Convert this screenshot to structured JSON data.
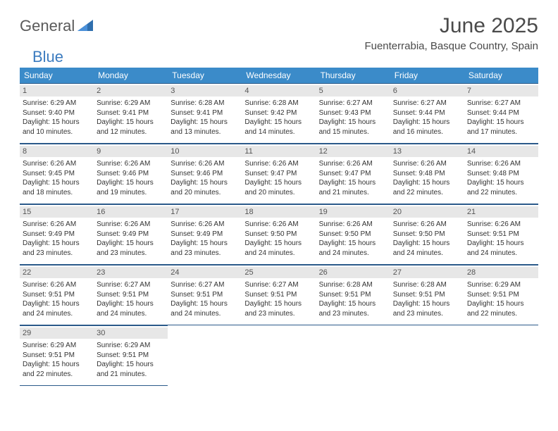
{
  "logo": {
    "general": "General",
    "blue": "Blue"
  },
  "title": "June 2025",
  "location": "Fuenterrabia, Basque Country, Spain",
  "weekdays": [
    "Sunday",
    "Monday",
    "Tuesday",
    "Wednesday",
    "Thursday",
    "Friday",
    "Saturday"
  ],
  "colors": {
    "header_bg": "#3b8bc9",
    "header_text": "#ffffff",
    "daynum_bg": "#e7e7e7",
    "border": "#2b5a8a",
    "logo_gray": "#5a5a5a",
    "logo_blue": "#3b7bbf"
  },
  "weeks": [
    [
      {
        "n": "1",
        "sr": "6:29 AM",
        "ss": "9:40 PM",
        "dl": "15 hours and 10 minutes."
      },
      {
        "n": "2",
        "sr": "6:29 AM",
        "ss": "9:41 PM",
        "dl": "15 hours and 12 minutes."
      },
      {
        "n": "3",
        "sr": "6:28 AM",
        "ss": "9:41 PM",
        "dl": "15 hours and 13 minutes."
      },
      {
        "n": "4",
        "sr": "6:28 AM",
        "ss": "9:42 PM",
        "dl": "15 hours and 14 minutes."
      },
      {
        "n": "5",
        "sr": "6:27 AM",
        "ss": "9:43 PM",
        "dl": "15 hours and 15 minutes."
      },
      {
        "n": "6",
        "sr": "6:27 AM",
        "ss": "9:44 PM",
        "dl": "15 hours and 16 minutes."
      },
      {
        "n": "7",
        "sr": "6:27 AM",
        "ss": "9:44 PM",
        "dl": "15 hours and 17 minutes."
      }
    ],
    [
      {
        "n": "8",
        "sr": "6:26 AM",
        "ss": "9:45 PM",
        "dl": "15 hours and 18 minutes."
      },
      {
        "n": "9",
        "sr": "6:26 AM",
        "ss": "9:46 PM",
        "dl": "15 hours and 19 minutes."
      },
      {
        "n": "10",
        "sr": "6:26 AM",
        "ss": "9:46 PM",
        "dl": "15 hours and 20 minutes."
      },
      {
        "n": "11",
        "sr": "6:26 AM",
        "ss": "9:47 PM",
        "dl": "15 hours and 20 minutes."
      },
      {
        "n": "12",
        "sr": "6:26 AM",
        "ss": "9:47 PM",
        "dl": "15 hours and 21 minutes."
      },
      {
        "n": "13",
        "sr": "6:26 AM",
        "ss": "9:48 PM",
        "dl": "15 hours and 22 minutes."
      },
      {
        "n": "14",
        "sr": "6:26 AM",
        "ss": "9:48 PM",
        "dl": "15 hours and 22 minutes."
      }
    ],
    [
      {
        "n": "15",
        "sr": "6:26 AM",
        "ss": "9:49 PM",
        "dl": "15 hours and 23 minutes."
      },
      {
        "n": "16",
        "sr": "6:26 AM",
        "ss": "9:49 PM",
        "dl": "15 hours and 23 minutes."
      },
      {
        "n": "17",
        "sr": "6:26 AM",
        "ss": "9:49 PM",
        "dl": "15 hours and 23 minutes."
      },
      {
        "n": "18",
        "sr": "6:26 AM",
        "ss": "9:50 PM",
        "dl": "15 hours and 24 minutes."
      },
      {
        "n": "19",
        "sr": "6:26 AM",
        "ss": "9:50 PM",
        "dl": "15 hours and 24 minutes."
      },
      {
        "n": "20",
        "sr": "6:26 AM",
        "ss": "9:50 PM",
        "dl": "15 hours and 24 minutes."
      },
      {
        "n": "21",
        "sr": "6:26 AM",
        "ss": "9:51 PM",
        "dl": "15 hours and 24 minutes."
      }
    ],
    [
      {
        "n": "22",
        "sr": "6:26 AM",
        "ss": "9:51 PM",
        "dl": "15 hours and 24 minutes."
      },
      {
        "n": "23",
        "sr": "6:27 AM",
        "ss": "9:51 PM",
        "dl": "15 hours and 24 minutes."
      },
      {
        "n": "24",
        "sr": "6:27 AM",
        "ss": "9:51 PM",
        "dl": "15 hours and 24 minutes."
      },
      {
        "n": "25",
        "sr": "6:27 AM",
        "ss": "9:51 PM",
        "dl": "15 hours and 23 minutes."
      },
      {
        "n": "26",
        "sr": "6:28 AM",
        "ss": "9:51 PM",
        "dl": "15 hours and 23 minutes."
      },
      {
        "n": "27",
        "sr": "6:28 AM",
        "ss": "9:51 PM",
        "dl": "15 hours and 23 minutes."
      },
      {
        "n": "28",
        "sr": "6:29 AM",
        "ss": "9:51 PM",
        "dl": "15 hours and 22 minutes."
      }
    ],
    [
      {
        "n": "29",
        "sr": "6:29 AM",
        "ss": "9:51 PM",
        "dl": "15 hours and 22 minutes."
      },
      {
        "n": "30",
        "sr": "6:29 AM",
        "ss": "9:51 PM",
        "dl": "15 hours and 21 minutes."
      },
      null,
      null,
      null,
      null,
      null
    ]
  ],
  "labels": {
    "sunrise": "Sunrise: ",
    "sunset": "Sunset: ",
    "daylight": "Daylight: "
  }
}
